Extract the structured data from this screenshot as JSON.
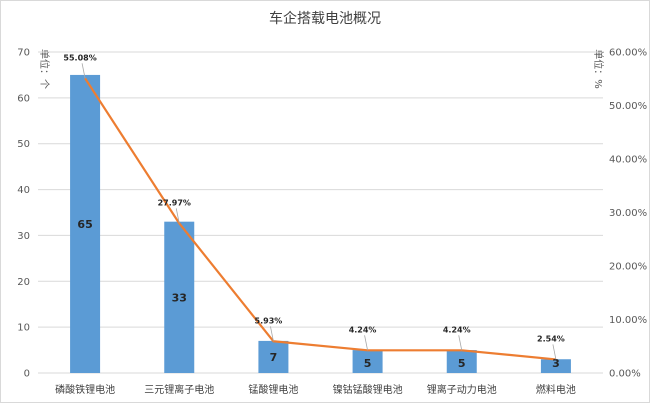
{
  "chart_data": {
    "type": "bar",
    "title": "车企搭载电池概况",
    "left_unit": "单位：个",
    "right_unit": "单位：%",
    "categories": [
      "磷酸铁锂电池",
      "三元锂离子电池",
      "锰酸锂电池",
      "镍钴锰酸锂电池",
      "锂离子动力电池",
      "燃料电池"
    ],
    "series": [
      {
        "kind": "bar",
        "axis": "left",
        "values": [
          65,
          33,
          7,
          5,
          5,
          3
        ],
        "color": "#5b9bd5"
      },
      {
        "kind": "line",
        "axis": "right",
        "values": [
          55.08,
          27.97,
          5.93,
          4.24,
          4.24,
          2.54
        ],
        "labels": [
          "55.08%",
          "27.97%",
          "5.93%",
          "4.24%",
          "4.24%",
          "2.54%"
        ],
        "color": "#ed7d31"
      }
    ],
    "left_axis": {
      "min": 0,
      "max": 70,
      "step": 10
    },
    "right_axis": {
      "min": 0,
      "max": 60,
      "step": 10,
      "suffix": "%",
      "decimals": 2
    },
    "grid": true
  }
}
